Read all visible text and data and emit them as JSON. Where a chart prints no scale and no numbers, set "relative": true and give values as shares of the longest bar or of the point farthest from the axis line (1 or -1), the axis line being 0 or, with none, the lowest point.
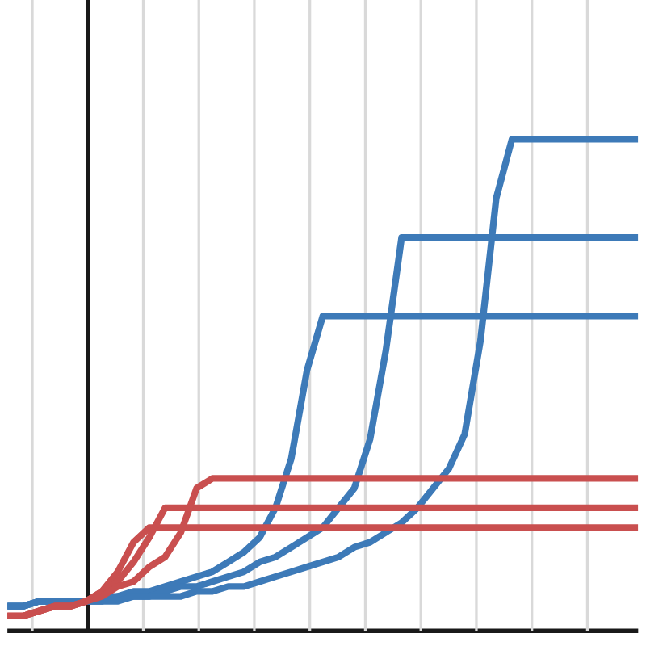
{
  "chart_data": {
    "type": "line",
    "relative": true,
    "grid": true,
    "line_style": "solid",
    "marker": "none",
    "categories": [
      null,
      null,
      null,
      null,
      null,
      null,
      null,
      null,
      null,
      null,
      null,
      null,
      null,
      null,
      null,
      null,
      null,
      null,
      null,
      null,
      null,
      null,
      null,
      null,
      null,
      null,
      null,
      null,
      null,
      null,
      null,
      null,
      null,
      null,
      null,
      null,
      null,
      null,
      null,
      null,
      null
    ],
    "series": [
      {
        "color": "#3d7ab8",
        "values": [
          0.05,
          0.05,
          0.06,
          0.06,
          0.06,
          0.06,
          0.07,
          0.07,
          0.08,
          0.08,
          0.09,
          0.1,
          0.11,
          0.12,
          0.14,
          0.16,
          0.19,
          0.25,
          0.35,
          0.53,
          0.64,
          0.64,
          0.64,
          0.64,
          0.64,
          0.64,
          0.64,
          0.64,
          0.64,
          0.64,
          0.64,
          0.64,
          0.64,
          0.64,
          0.64,
          0.64,
          0.64,
          0.64,
          0.64,
          0.64,
          0.64
        ]
      },
      {
        "color": "#3d7ab8",
        "values": [
          0.05,
          0.05,
          0.06,
          0.06,
          0.06,
          0.06,
          0.06,
          0.07,
          0.07,
          0.07,
          0.08,
          0.09,
          0.09,
          0.1,
          0.11,
          0.12,
          0.14,
          0.15,
          0.17,
          0.19,
          0.21,
          0.25,
          0.29,
          0.39,
          0.57,
          0.8,
          0.8,
          0.8,
          0.8,
          0.8,
          0.8,
          0.8,
          0.8,
          0.8,
          0.8,
          0.8,
          0.8,
          0.8,
          0.8,
          0.8,
          0.8
        ]
      },
      {
        "color": "#3d7ab8",
        "values": [
          0.05,
          0.05,
          0.06,
          0.06,
          0.06,
          0.06,
          0.06,
          0.06,
          0.07,
          0.07,
          0.07,
          0.07,
          0.08,
          0.08,
          0.09,
          0.09,
          0.1,
          0.11,
          0.12,
          0.13,
          0.14,
          0.15,
          0.17,
          0.18,
          0.2,
          0.22,
          0.25,
          0.29,
          0.33,
          0.4,
          0.59,
          0.88,
          1.0,
          1.0,
          1.0,
          1.0,
          1.0,
          1.0,
          1.0,
          1.0,
          1.0
        ]
      },
      {
        "color": "#c94f4f",
        "values": [
          0.03,
          0.03,
          0.04,
          0.05,
          0.05,
          0.06,
          0.08,
          0.12,
          0.18,
          0.21,
          0.21,
          0.21,
          0.21,
          0.21,
          0.21,
          0.21,
          0.21,
          0.21,
          0.21,
          0.21,
          0.21,
          0.21,
          0.21,
          0.21,
          0.21,
          0.21,
          0.21,
          0.21,
          0.21,
          0.21,
          0.21,
          0.21,
          0.21,
          0.21,
          0.21,
          0.21,
          0.21,
          0.21,
          0.21,
          0.21,
          0.21
        ]
      },
      {
        "color": "#c94f4f",
        "values": [
          0.03,
          0.03,
          0.04,
          0.05,
          0.05,
          0.06,
          0.08,
          0.1,
          0.14,
          0.19,
          0.25,
          0.25,
          0.25,
          0.25,
          0.25,
          0.25,
          0.25,
          0.25,
          0.25,
          0.25,
          0.25,
          0.25,
          0.25,
          0.25,
          0.25,
          0.25,
          0.25,
          0.25,
          0.25,
          0.25,
          0.25,
          0.25,
          0.25,
          0.25,
          0.25,
          0.25,
          0.25,
          0.25,
          0.25,
          0.25,
          0.25
        ]
      },
      {
        "color": "#c94f4f",
        "values": [
          0.03,
          0.03,
          0.04,
          0.05,
          0.05,
          0.06,
          0.07,
          0.09,
          0.1,
          0.13,
          0.15,
          0.2,
          0.29,
          0.31,
          0.31,
          0.31,
          0.31,
          0.31,
          0.31,
          0.31,
          0.31,
          0.31,
          0.31,
          0.31,
          0.31,
          0.31,
          0.31,
          0.31,
          0.31,
          0.31,
          0.31,
          0.31,
          0.31,
          0.31,
          0.31,
          0.31,
          0.31,
          0.31,
          0.31,
          0.31,
          0.31
        ]
      }
    ]
  }
}
